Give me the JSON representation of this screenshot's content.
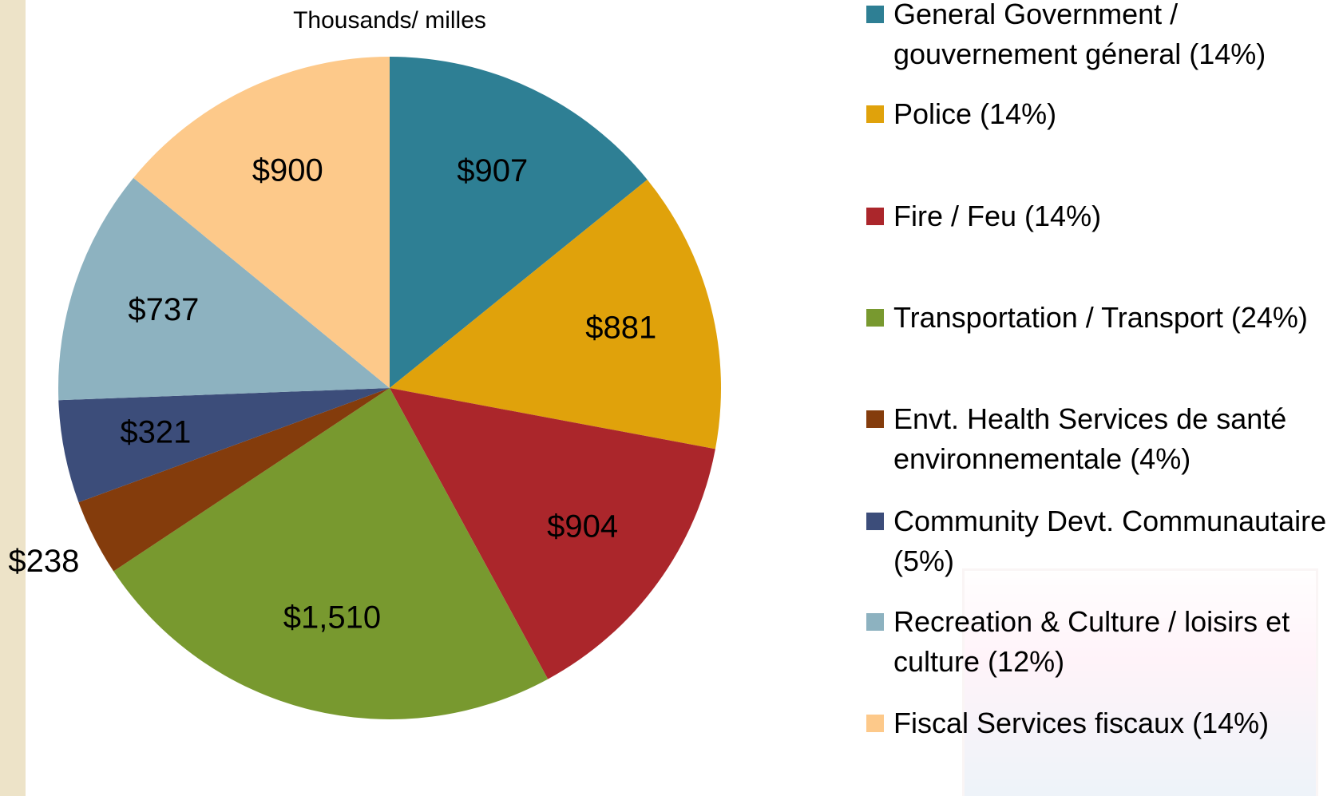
{
  "chart_data": {
    "type": "pie",
    "title": "Thousands/ milles",
    "categories": [
      "General Government / gouvernement géneral (14%)",
      "Police (14%)",
      "Fire / Feu (14%)",
      "Transportation / Transport (24%)",
      "Envt. Health Services de santé environnementale (4%)",
      "Community Devt. Communautaire (5%)",
      "Recreation & Culture / loisirs et culture (12%)",
      "Fiscal Services fiscaux (14%)"
    ],
    "values": [
      907,
      881,
      904,
      1510,
      238,
      321,
      737,
      900
    ],
    "value_labels": [
      "$907",
      "$881",
      "$904",
      "$1,510",
      "$238",
      "$321",
      "$737",
      "$900"
    ],
    "colors": [
      "#2e7f94",
      "#e0a20b",
      "#ab262b",
      "#78992f",
      "#843c0c",
      "#3c4d7a",
      "#8db2c0",
      "#fdc98a"
    ]
  }
}
